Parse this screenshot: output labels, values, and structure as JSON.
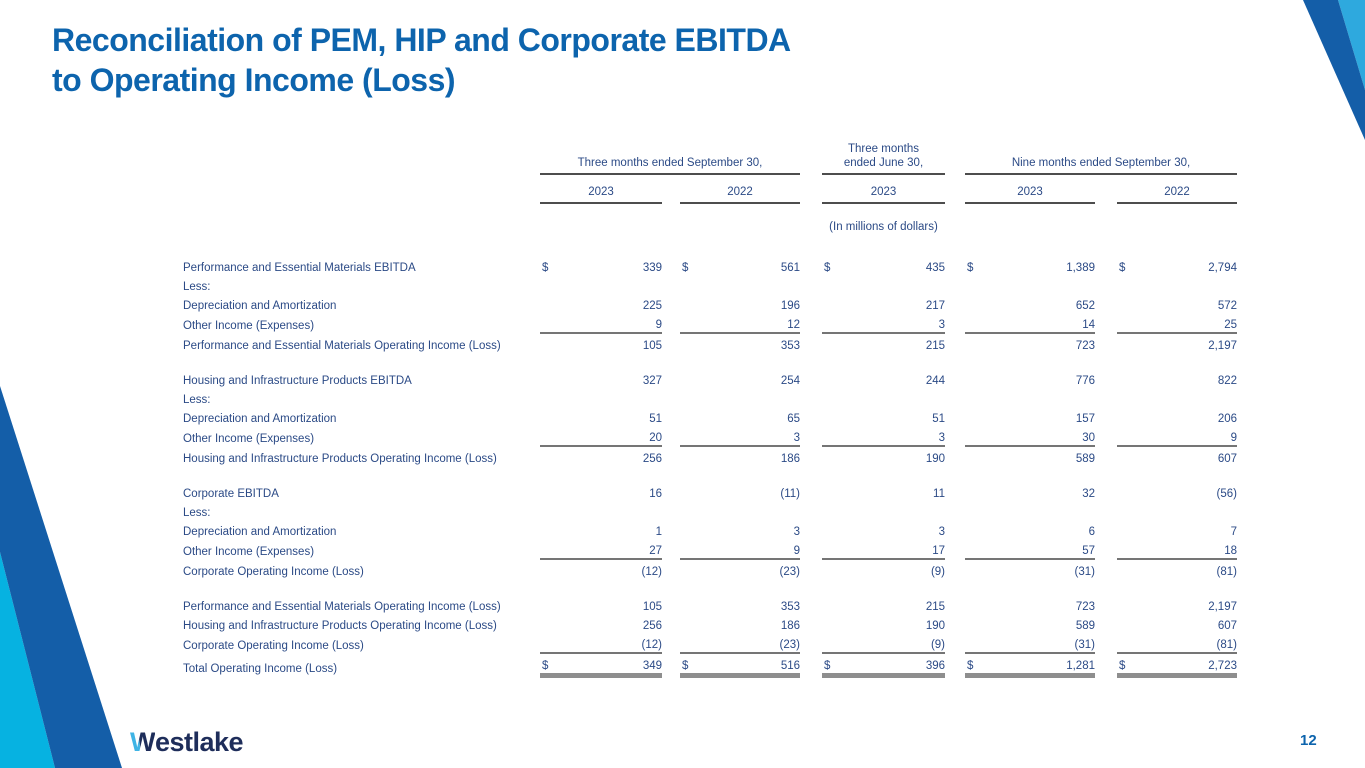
{
  "slide": {
    "title_line1": "Reconciliation of PEM, HIP and Corporate EBITDA",
    "title_line2": "to Operating Income (Loss)",
    "units_note": "(In millions of dollars)",
    "logo_text": "Westlake",
    "page_number": "12"
  },
  "colors": {
    "title_blue": "#0d64ad",
    "body_text_navy": "#2b4a86",
    "header_rule_gray": "#4d4d4d",
    "body_rule_gray": "#757575",
    "grand_total_bar_gray": "#8e8e8e",
    "corner_dark_blue": "#145ea8",
    "corner_cyan_bottom": "#06b2e1",
    "corner_cyan_top": "#2ea9de",
    "logo_navy": "#1e2d5a",
    "logo_cyan": "#3fb4e5"
  },
  "table": {
    "column_groups": [
      {
        "label": "Three months ended September 30,",
        "years": [
          "2023",
          "2022"
        ]
      },
      {
        "label": "Three months ended June 30,",
        "label_line1": "Three months",
        "label_line2": "ended June 30,",
        "years": [
          "2023"
        ]
      },
      {
        "label": "Nine months ended September 30,",
        "years": [
          "2023",
          "2022"
        ]
      }
    ],
    "rows": [
      {
        "label": "Performance and Essential Materials EBITDA",
        "dollar": true,
        "values": [
          "339",
          "561",
          "435",
          "1,389",
          "2,794"
        ]
      },
      {
        "label": "Less:",
        "values": [
          "",
          "",
          "",
          "",
          ""
        ]
      },
      {
        "label": "Depreciation and Amortization",
        "values": [
          "225",
          "196",
          "217",
          "652",
          "572"
        ]
      },
      {
        "label": "Other Income (Expenses)",
        "values": [
          "9",
          "12",
          "3",
          "14",
          "25"
        ],
        "underline": true
      },
      {
        "label": "Performance and Essential Materials Operating Income (Loss)",
        "values": [
          "105",
          "353",
          "215",
          "723",
          "2,197"
        ],
        "spacer_after": true
      },
      {
        "label": "Housing and Infrastructure Products EBITDA",
        "values": [
          "327",
          "254",
          "244",
          "776",
          "822"
        ]
      },
      {
        "label": "Less:",
        "values": [
          "",
          "",
          "",
          "",
          ""
        ]
      },
      {
        "label": "Depreciation and Amortization",
        "values": [
          "51",
          "65",
          "51",
          "157",
          "206"
        ]
      },
      {
        "label": "Other Income (Expenses)",
        "values": [
          "20",
          "3",
          "3",
          "30",
          "9"
        ],
        "underline": true
      },
      {
        "label": "Housing and Infrastructure Products Operating Income (Loss)",
        "values": [
          "256",
          "186",
          "190",
          "589",
          "607"
        ],
        "spacer_after": true
      },
      {
        "label": "Corporate EBITDA",
        "values": [
          "16",
          "(11)",
          "11",
          "32",
          "(56)"
        ]
      },
      {
        "label": "Less:",
        "values": [
          "",
          "",
          "",
          "",
          ""
        ]
      },
      {
        "label": "Depreciation and Amortization",
        "values": [
          "1",
          "3",
          "3",
          "6",
          "7"
        ]
      },
      {
        "label": "Other Income (Expenses)",
        "values": [
          "27",
          "9",
          "17",
          "57",
          "18"
        ],
        "underline": true
      },
      {
        "label": "Corporate Operating Income (Loss)",
        "values": [
          "(12)",
          "(23)",
          "(9)",
          "(31)",
          "(81)"
        ],
        "spacer_after": true
      },
      {
        "label": "Performance and Essential Materials Operating Income (Loss)",
        "values": [
          "105",
          "353",
          "215",
          "723",
          "2,197"
        ]
      },
      {
        "label": "Housing and Infrastructure Products Operating Income (Loss)",
        "values": [
          "256",
          "186",
          "190",
          "589",
          "607"
        ]
      },
      {
        "label": "Corporate Operating Income (Loss)",
        "values": [
          "(12)",
          "(23)",
          "(9)",
          "(31)",
          "(81)"
        ],
        "underline": true
      },
      {
        "label": "Total Operating Income (Loss)",
        "dollar": true,
        "values": [
          "349",
          "516",
          "396",
          "1,281",
          "2,723"
        ],
        "grand": true
      }
    ]
  }
}
